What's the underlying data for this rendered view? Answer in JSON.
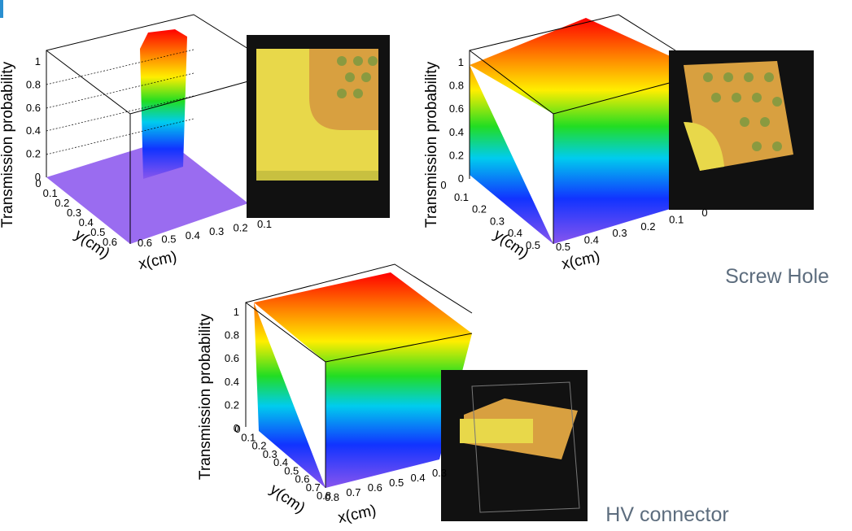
{
  "panels": [
    {
      "z_label": "Transmission probability",
      "y_label": "y(cm)",
      "x_label": "x(cm)",
      "z_ticks": [
        "0",
        "0.2",
        "0.4",
        "0.6",
        "0.8",
        "1"
      ],
      "y_ticks": [
        "0",
        "0.1",
        "0.2",
        "0.3",
        "0.4",
        "0.5",
        "0.6"
      ],
      "x_ticks": [
        "0.6",
        "0.5",
        "0.4",
        "0.3",
        "0.2",
        "0.1"
      ]
    },
    {
      "z_label": "Transmission probability",
      "y_label": "y(cm)",
      "x_label": "x(cm)",
      "z_ticks": [
        "0",
        "0.2",
        "0.4",
        "0.6",
        "0.8",
        "1"
      ],
      "y_ticks": [
        "0",
        "0.1",
        "0.2",
        "0.3",
        "0.4",
        "0.5"
      ],
      "x_ticks": [
        "0.5",
        "0.4",
        "0.3",
        "0.2",
        "0.1",
        "0"
      ]
    },
    {
      "z_label": "Transmission probability",
      "y_label": "y(cm)",
      "x_label": "x(cm)",
      "z_ticks": [
        "0",
        "0.2",
        "0.4",
        "0.6",
        "0.8",
        "1"
      ],
      "y_ticks": [
        "0",
        "0.1",
        "0.2",
        "0.3",
        "0.4",
        "0.5",
        "0.6",
        "0.7",
        "0.8"
      ],
      "x_ticks": [
        "0.8",
        "0.7",
        "0.6",
        "0.5",
        "0.4",
        "0.3"
      ]
    }
  ],
  "captions": [
    "Screw Hole",
    "HV connector"
  ]
}
